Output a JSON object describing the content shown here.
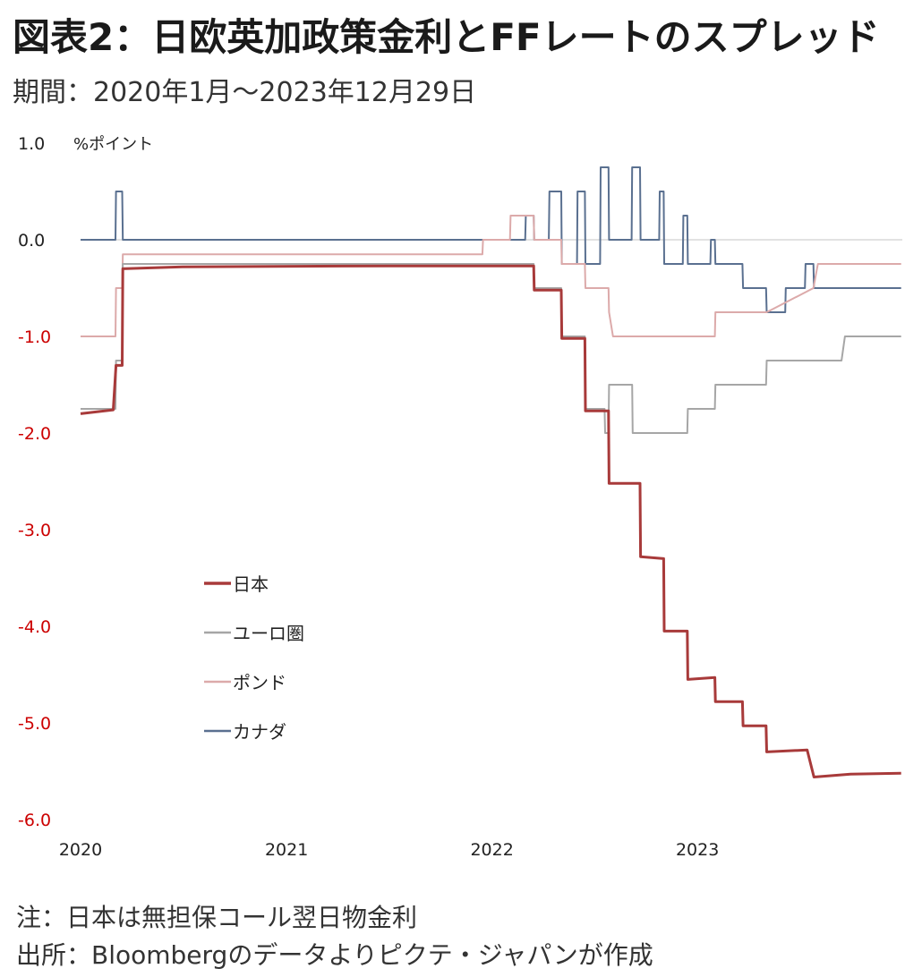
{
  "header": {
    "title": "図表2：日欧英加政策金利とFFレートのスプレッド",
    "subtitle": "期間：2020年1月～2023年12月29日"
  },
  "footer": {
    "note": "注：日本は無担保コール翌日物金利",
    "source": "出所：Bloombergのデータよりピクテ・ジャパンが作成"
  },
  "chart_data": {
    "type": "line",
    "ylabel": "%ポイント",
    "ylim": [
      -6.0,
      1.0
    ],
    "y_ticks": [
      "1.0",
      "0.0",
      "-1.0",
      "-2.0",
      "-3.0",
      "-4.0",
      "-5.0",
      "-6.0"
    ],
    "xlim": [
      "2020-01-01",
      "2023-12-31"
    ],
    "x_ticks": [
      "2020",
      "2021",
      "2022",
      "2023"
    ],
    "negative_tick_color": "#cc0000",
    "legend_position": "left",
    "series": [
      {
        "name": "日本",
        "color": "#a83a3a",
        "points": [
          [
            "2020-01-01",
            -1.8
          ],
          [
            "2020-02-28",
            -1.76
          ],
          [
            "2020-03-04",
            -1.3
          ],
          [
            "2020-03-15",
            -1.3
          ],
          [
            "2020-03-16",
            -0.3
          ],
          [
            "2020-06-30",
            -0.28
          ],
          [
            "2021-06-30",
            -0.27
          ],
          [
            "2022-03-16",
            -0.27
          ],
          [
            "2022-03-17",
            -0.52
          ],
          [
            "2022-05-04",
            -0.52
          ],
          [
            "2022-05-05",
            -1.02
          ],
          [
            "2022-06-15",
            -1.02
          ],
          [
            "2022-06-16",
            -1.77
          ],
          [
            "2022-07-27",
            -1.77
          ],
          [
            "2022-07-28",
            -2.52
          ],
          [
            "2022-09-21",
            -2.52
          ],
          [
            "2022-09-22",
            -3.28
          ],
          [
            "2022-11-02",
            -3.3
          ],
          [
            "2022-11-03",
            -4.05
          ],
          [
            "2022-12-14",
            -4.05
          ],
          [
            "2022-12-15",
            -4.55
          ],
          [
            "2023-02-01",
            -4.53
          ],
          [
            "2023-02-02",
            -4.78
          ],
          [
            "2023-03-22",
            -4.78
          ],
          [
            "2023-03-23",
            -5.03
          ],
          [
            "2023-05-03",
            -5.03
          ],
          [
            "2023-05-04",
            -5.3
          ],
          [
            "2023-07-15",
            -5.28
          ],
          [
            "2023-07-27",
            -5.56
          ],
          [
            "2023-09-30",
            -5.53
          ],
          [
            "2023-12-29",
            -5.52
          ]
        ]
      },
      {
        "name": "ユーロ圏",
        "color": "#a6a6a6",
        "points": [
          [
            "2020-01-01",
            -1.75
          ],
          [
            "2020-03-03",
            -1.75
          ],
          [
            "2020-03-04",
            -1.25
          ],
          [
            "2020-03-15",
            -1.25
          ],
          [
            "2020-03-16",
            -0.25
          ],
          [
            "2022-03-16",
            -0.25
          ],
          [
            "2022-03-17",
            -0.5
          ],
          [
            "2022-05-04",
            -0.5
          ],
          [
            "2022-05-05",
            -1.0
          ],
          [
            "2022-06-15",
            -1.0
          ],
          [
            "2022-06-16",
            -1.75
          ],
          [
            "2022-07-20",
            -1.75
          ],
          [
            "2022-07-21",
            -2.0
          ],
          [
            "2022-07-27",
            -2.0
          ],
          [
            "2022-07-28",
            -1.5
          ],
          [
            "2022-09-07",
            -1.5
          ],
          [
            "2022-09-08",
            -2.0
          ],
          [
            "2022-10-26",
            -2.0
          ],
          [
            "2022-10-27",
            -2.0
          ],
          [
            "2022-11-02",
            -2.0
          ],
          [
            "2022-11-03",
            -2.0
          ],
          [
            "2022-12-14",
            -2.0
          ],
          [
            "2022-12-15",
            -1.75
          ],
          [
            "2023-02-01",
            -1.75
          ],
          [
            "2023-02-02",
            -1.5
          ],
          [
            "2023-03-22",
            -1.5
          ],
          [
            "2023-05-03",
            -1.5
          ],
          [
            "2023-05-04",
            -1.25
          ],
          [
            "2023-07-26",
            -1.25
          ],
          [
            "2023-09-14",
            -1.25
          ],
          [
            "2023-09-20",
            -1.0
          ],
          [
            "2023-12-29",
            -1.0
          ]
        ]
      },
      {
        "name": "ポンド",
        "color": "#dcaaaa",
        "points": [
          [
            "2020-01-01",
            -1.0
          ],
          [
            "2020-03-03",
            -1.0
          ],
          [
            "2020-03-04",
            -0.5
          ],
          [
            "2020-03-15",
            -0.5
          ],
          [
            "2020-03-16",
            -0.15
          ],
          [
            "2021-12-15",
            -0.15
          ],
          [
            "2021-12-16",
            0.0
          ],
          [
            "2022-02-02",
            0.0
          ],
          [
            "2022-02-03",
            0.25
          ],
          [
            "2022-03-16",
            0.25
          ],
          [
            "2022-03-17",
            0.0
          ],
          [
            "2022-05-04",
            0.0
          ],
          [
            "2022-05-05",
            -0.25
          ],
          [
            "2022-06-15",
            -0.25
          ],
          [
            "2022-06-16",
            -0.5
          ],
          [
            "2022-07-27",
            -0.5
          ],
          [
            "2022-07-28",
            -0.75
          ],
          [
            "2022-08-04",
            -1.0
          ],
          [
            "2022-09-21",
            -1.0
          ],
          [
            "2022-11-02",
            -1.0
          ],
          [
            "2022-11-03",
            -1.0
          ],
          [
            "2022-12-14",
            -1.0
          ],
          [
            "2022-12-15",
            -1.0
          ],
          [
            "2023-02-01",
            -1.0
          ],
          [
            "2023-02-02",
            -0.75
          ],
          [
            "2023-05-03",
            -0.75
          ],
          [
            "2023-05-04",
            -0.75
          ],
          [
            "2023-07-26",
            -0.5
          ],
          [
            "2023-08-03",
            -0.25
          ],
          [
            "2023-12-29",
            -0.25
          ]
        ]
      },
      {
        "name": "カナダ",
        "color": "#5a7090",
        "points": [
          [
            "2020-01-01",
            0.0
          ],
          [
            "2020-03-03",
            0.0
          ],
          [
            "2020-03-04",
            0.5
          ],
          [
            "2020-03-12",
            0.5
          ],
          [
            "2020-03-13",
            0.5
          ],
          [
            "2020-03-15",
            0.5
          ],
          [
            "2020-03-16",
            0.0
          ],
          [
            "2022-03-01",
            0.0
          ],
          [
            "2022-03-02",
            0.25
          ],
          [
            "2022-03-16",
            0.25
          ],
          [
            "2022-03-17",
            0.0
          ],
          [
            "2022-04-12",
            0.0
          ],
          [
            "2022-04-13",
            0.5
          ],
          [
            "2022-05-04",
            0.5
          ],
          [
            "2022-05-05",
            -0.25
          ],
          [
            "2022-06-01",
            -0.25
          ],
          [
            "2022-06-02",
            0.5
          ],
          [
            "2022-06-15",
            0.5
          ],
          [
            "2022-06-16",
            -0.25
          ],
          [
            "2022-07-12",
            -0.25
          ],
          [
            "2022-07-13",
            0.75
          ],
          [
            "2022-07-27",
            0.75
          ],
          [
            "2022-07-28",
            0.0
          ],
          [
            "2022-09-06",
            0.0
          ],
          [
            "2022-09-07",
            0.75
          ],
          [
            "2022-09-21",
            0.75
          ],
          [
            "2022-09-22",
            0.0
          ],
          [
            "2022-10-25",
            0.0
          ],
          [
            "2022-10-26",
            0.5
          ],
          [
            "2022-11-02",
            0.5
          ],
          [
            "2022-11-03",
            -0.25
          ],
          [
            "2022-12-06",
            -0.25
          ],
          [
            "2022-12-07",
            0.25
          ],
          [
            "2022-12-14",
            0.25
          ],
          [
            "2022-12-15",
            -0.25
          ],
          [
            "2023-01-24",
            -0.25
          ],
          [
            "2023-01-25",
            0.0
          ],
          [
            "2023-02-01",
            0.0
          ],
          [
            "2023-02-02",
            -0.25
          ],
          [
            "2023-03-22",
            -0.25
          ],
          [
            "2023-03-23",
            -0.5
          ],
          [
            "2023-05-03",
            -0.5
          ],
          [
            "2023-05-04",
            -0.75
          ],
          [
            "2023-06-06",
            -0.75
          ],
          [
            "2023-06-07",
            -0.5
          ],
          [
            "2023-07-11",
            -0.5
          ],
          [
            "2023-07-12",
            -0.25
          ],
          [
            "2023-07-26",
            -0.25
          ],
          [
            "2023-07-27",
            -0.5
          ],
          [
            "2023-12-29",
            -0.5
          ]
        ]
      }
    ]
  }
}
